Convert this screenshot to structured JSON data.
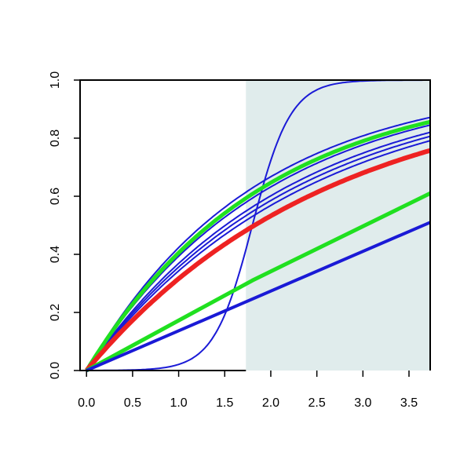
{
  "chart_data": {
    "type": "line",
    "title": "",
    "xlabel": "",
    "ylabel": "",
    "xlim": [
      -0.07,
      3.73
    ],
    "ylim": [
      0,
      1.0
    ],
    "x_ticks": [
      "0.0",
      "0.5",
      "1.0",
      "1.5",
      "2.0",
      "2.5",
      "3.0",
      "3.5"
    ],
    "y_ticks": [
      "0.0",
      "0.2",
      "0.4",
      "0.6",
      "0.8",
      "1.0"
    ],
    "shaded_region": {
      "x_from": 1.73,
      "x_to": 3.73,
      "color": "#e0ecec"
    },
    "grid": false,
    "legend": "none",
    "series": [
      {
        "kind": "logistic",
        "midpoint": 1.8,
        "slope": 4.8,
        "color": "#1a1ad6",
        "width": 2
      },
      {
        "kind": "exp",
        "rate": 0.55,
        "scale": 1.0,
        "color": "#1a1ad6",
        "width": 2
      },
      {
        "kind": "exp",
        "rate": 0.5,
        "scale": 1.0,
        "color": "#1a1ad6",
        "width": 2
      },
      {
        "kind": "exp",
        "rate": 0.46,
        "scale": 1.0,
        "color": "#1a1ad6",
        "width": 2
      },
      {
        "kind": "exp",
        "rate": 0.44,
        "scale": 1.0,
        "color": "#1a1ad6",
        "width": 2
      },
      {
        "kind": "exp",
        "rate": 0.42,
        "scale": 1.0,
        "color": "#1a1ad6",
        "width": 2
      },
      {
        "kind": "exp",
        "rate": 0.52,
        "scale": 1.0,
        "color": "#20e020",
        "width": 5
      },
      {
        "kind": "exp",
        "rate": 0.38,
        "scale": 1.0,
        "color": "#ee2222",
        "width": 6
      },
      {
        "kind": "polyline",
        "points": [
          [
            0,
            0
          ],
          [
            1.8,
            0.31
          ],
          [
            3.73,
            0.61
          ]
        ],
        "color": "#20e020",
        "width": 5
      },
      {
        "kind": "polyline",
        "points": [
          [
            0,
            0
          ],
          [
            3.73,
            0.51
          ]
        ],
        "color": "#1a1ad6",
        "width": 4
      }
    ]
  }
}
